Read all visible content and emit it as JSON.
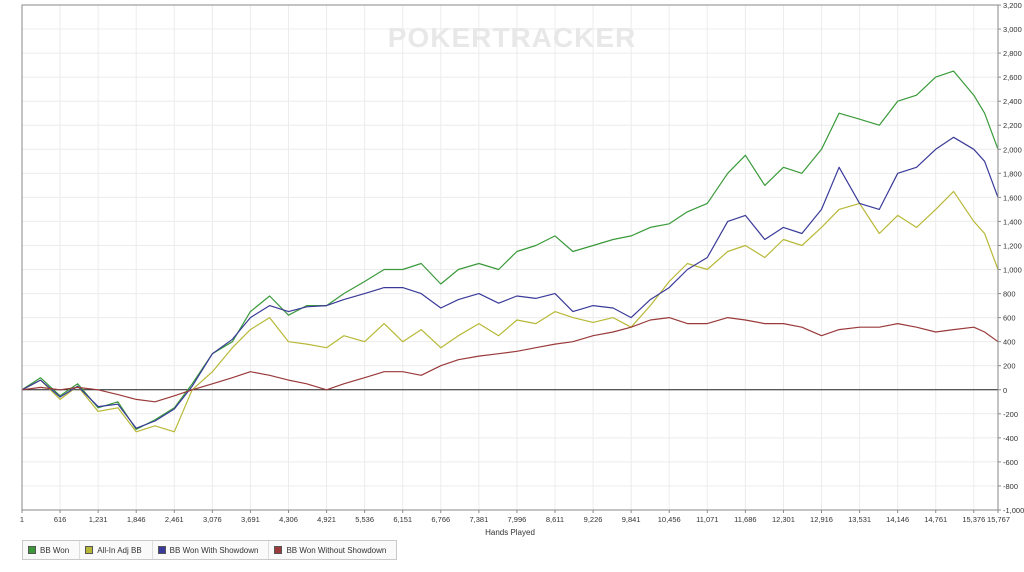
{
  "watermark": {
    "text": "POKERTRACKER"
  },
  "chart_data": {
    "type": "line",
    "title": "",
    "xlabel": "Hands Played",
    "ylabel": "",
    "xlim": [
      1,
      15767
    ],
    "ylim": [
      -1000,
      3200
    ],
    "x_ticks": [
      "1",
      "616",
      "1,231",
      "1,846",
      "2,461",
      "3,076",
      "3,691",
      "4,306",
      "4,921",
      "5,536",
      "6,151",
      "6,766",
      "7,381",
      "7,996",
      "8,611",
      "9,226",
      "9,841",
      "10,456",
      "11,071",
      "11,686",
      "12,301",
      "12,916",
      "13,531",
      "14,146",
      "14,761",
      "15,376",
      "15,767"
    ],
    "x_tick_values": [
      1,
      616,
      1231,
      1846,
      2461,
      3076,
      3691,
      4306,
      4921,
      5536,
      6151,
      6766,
      7381,
      7996,
      8611,
      9226,
      9841,
      10456,
      11071,
      11686,
      12301,
      12916,
      13531,
      14146,
      14761,
      15376,
      15767
    ],
    "y_ticks": [
      "-1,000",
      "-800",
      "-600",
      "-400",
      "-200",
      "0",
      "200",
      "400",
      "600",
      "800",
      "1,000",
      "1,200",
      "1,400",
      "1,600",
      "1,800",
      "2,000",
      "2,200",
      "2,400",
      "2,600",
      "2,800",
      "3,000",
      "3,200"
    ],
    "y_tick_values": [
      -1000,
      -800,
      -600,
      -400,
      -200,
      0,
      200,
      400,
      600,
      800,
      1000,
      1200,
      1400,
      1600,
      1800,
      2000,
      2200,
      2400,
      2600,
      2800,
      3000,
      3200
    ],
    "grid": true,
    "legend_position": "bottom-left",
    "x": [
      1,
      300,
      616,
      900,
      1231,
      1550,
      1846,
      2150,
      2461,
      2750,
      3076,
      3400,
      3691,
      4000,
      4306,
      4600,
      4921,
      5200,
      5536,
      5850,
      6151,
      6450,
      6766,
      7050,
      7381,
      7700,
      7996,
      8300,
      8611,
      8900,
      9226,
      9550,
      9841,
      10150,
      10456,
      10750,
      11071,
      11400,
      11686,
      12000,
      12301,
      12600,
      12916,
      13200,
      13531,
      13850,
      14146,
      14450,
      14761,
      15050,
      15376,
      15550,
      15767
    ],
    "series": [
      {
        "name": "BB Won",
        "color": "#3a9a3a",
        "values": [
          0,
          100,
          -50,
          50,
          -150,
          -100,
          -330,
          -250,
          -150,
          50,
          300,
          400,
          650,
          780,
          620,
          700,
          700,
          800,
          900,
          1000,
          1000,
          1050,
          880,
          1000,
          1050,
          1000,
          1150,
          1200,
          1280,
          1150,
          1200,
          1250,
          1280,
          1350,
          1380,
          1480,
          1550,
          1800,
          1950,
          1700,
          1850,
          1800,
          2000,
          2300,
          2250,
          2200,
          2400,
          2450,
          2600,
          2650,
          2450,
          2300,
          2000
        ]
      },
      {
        "name": "All-In Adj BB",
        "color": "#b8b838",
        "values": [
          0,
          80,
          -80,
          30,
          -180,
          -150,
          -350,
          -300,
          -350,
          0,
          150,
          350,
          500,
          600,
          400,
          380,
          350,
          450,
          400,
          550,
          400,
          500,
          350,
          450,
          550,
          450,
          580,
          550,
          650,
          600,
          560,
          600,
          520,
          700,
          900,
          1050,
          1000,
          1150,
          1200,
          1100,
          1250,
          1200,
          1350,
          1500,
          1550,
          1300,
          1450,
          1350,
          1500,
          1650,
          1400,
          1300,
          1000
        ]
      },
      {
        "name": "BB Won With Showdown",
        "color": "#3a3a9a",
        "values": [
          0,
          80,
          -60,
          30,
          -140,
          -120,
          -320,
          -260,
          -160,
          30,
          300,
          420,
          600,
          700,
          650,
          690,
          700,
          750,
          800,
          850,
          850,
          800,
          680,
          750,
          800,
          720,
          780,
          760,
          800,
          650,
          700,
          680,
          600,
          750,
          850,
          1000,
          1100,
          1400,
          1450,
          1250,
          1350,
          1300,
          1500,
          1850,
          1550,
          1500,
          1800,
          1850,
          2000,
          2100,
          2000,
          1900,
          1600
        ]
      },
      {
        "name": "BB Won Without Showdown",
        "color": "#9a3a3a",
        "values": [
          0,
          20,
          0,
          20,
          0,
          -40,
          -80,
          -100,
          -50,
          0,
          50,
          100,
          150,
          120,
          80,
          50,
          0,
          50,
          100,
          150,
          150,
          120,
          200,
          250,
          280,
          300,
          320,
          350,
          380,
          400,
          450,
          480,
          520,
          580,
          600,
          550,
          550,
          600,
          580,
          550,
          550,
          520,
          450,
          500,
          520,
          520,
          550,
          520,
          480,
          500,
          520,
          480,
          400
        ]
      }
    ]
  }
}
